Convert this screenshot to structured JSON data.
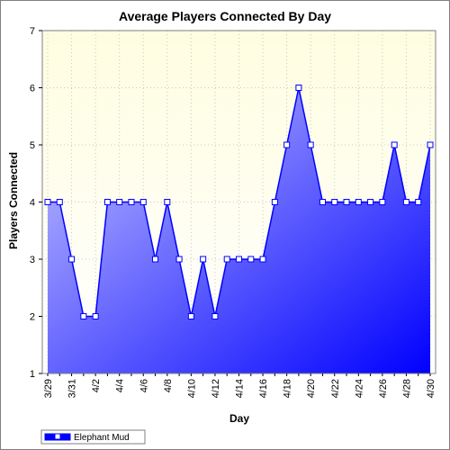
{
  "chart_data": {
    "type": "area",
    "title": "Average Players Connected By Day",
    "xlabel": "Day",
    "ylabel": "Players Connected",
    "ylim": [
      1,
      7
    ],
    "yticks": [
      1,
      2,
      3,
      4,
      5,
      6,
      7
    ],
    "grid": true,
    "legend_position": "bottom-left",
    "x": [
      "3/29",
      "3/30",
      "3/31",
      "4/1",
      "4/2",
      "4/3",
      "4/4",
      "4/5",
      "4/6",
      "4/7",
      "4/8",
      "4/9",
      "4/10",
      "4/11",
      "4/12",
      "4/13",
      "4/14",
      "4/15",
      "4/16",
      "4/17",
      "4/18",
      "4/19",
      "4/20",
      "4/21",
      "4/22",
      "4/23",
      "4/24",
      "4/25",
      "4/26",
      "4/27",
      "4/28",
      "4/29",
      "4/30"
    ],
    "xtick_labels": [
      "3/29",
      "3/31",
      "4/2",
      "4/4",
      "4/6",
      "4/8",
      "4/10",
      "4/12",
      "4/14",
      "4/16",
      "4/18",
      "4/20",
      "4/22",
      "4/24",
      "4/26",
      "4/28",
      "4/30"
    ],
    "series": [
      {
        "name": "Elephant Mud",
        "values": [
          4,
          4,
          3,
          2,
          2,
          4,
          4,
          4,
          4,
          3,
          4,
          3,
          2,
          3,
          2,
          3,
          3,
          3,
          3,
          4,
          5,
          6,
          5,
          4,
          4,
          4,
          4,
          4,
          4,
          5,
          4,
          4,
          5
        ],
        "color": "#0000ff"
      }
    ],
    "colors": {
      "plot_background_top": "#fffde0",
      "plot_background_bottom": "#ffffff",
      "fill_light": "#c8c8ff",
      "fill_dark": "#0000ff",
      "line": "#0000ff",
      "marker_fill": "#ffffff",
      "grid": "#c8c8c8"
    }
  }
}
